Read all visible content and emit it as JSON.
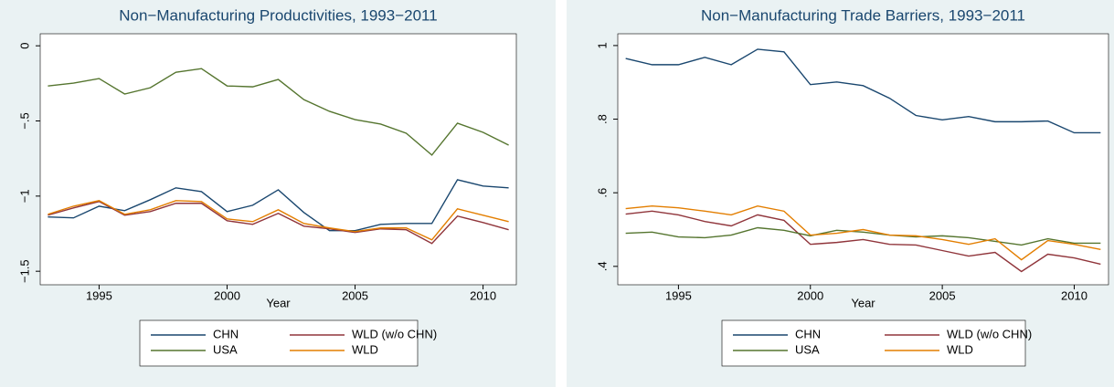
{
  "chart_data": [
    {
      "type": "line",
      "title": "Non−Manufacturing Productivities, 1993−2011",
      "x_label": "Year",
      "x": [
        1993,
        1994,
        1995,
        1996,
        1997,
        1998,
        1999,
        2000,
        2001,
        2002,
        2003,
        2004,
        2005,
        2006,
        2007,
        2008,
        2009,
        2010,
        2011
      ],
      "series": [
        {
          "name": "CHN",
          "color": "#1a476f",
          "values": [
            -1.139,
            -1.145,
            -1.067,
            -1.097,
            -1.024,
            -0.945,
            -0.97,
            -1.103,
            -1.061,
            -0.958,
            -1.109,
            -1.23,
            -1.23,
            -1.188,
            -1.182,
            -1.182,
            -0.891,
            -0.933,
            -0.945
          ]
        },
        {
          "name": "WLD (w/o CHN)",
          "color": "#90353b",
          "values": [
            -1.127,
            -1.079,
            -1.036,
            -1.127,
            -1.103,
            -1.048,
            -1.048,
            -1.164,
            -1.188,
            -1.115,
            -1.2,
            -1.218,
            -1.242,
            -1.218,
            -1.224,
            -1.315,
            -1.133,
            -1.176,
            -1.224
          ]
        },
        {
          "name": "USA",
          "color": "#55752f",
          "values": [
            -0.267,
            -0.248,
            -0.218,
            -0.321,
            -0.279,
            -0.176,
            -0.152,
            -0.267,
            -0.273,
            -0.224,
            -0.358,
            -0.436,
            -0.491,
            -0.521,
            -0.582,
            -0.727,
            -0.515,
            -0.576,
            -0.661
          ]
        },
        {
          "name": "WLD",
          "color": "#e37e00",
          "values": [
            -1.121,
            -1.067,
            -1.03,
            -1.121,
            -1.091,
            -1.03,
            -1.036,
            -1.152,
            -1.17,
            -1.091,
            -1.182,
            -1.212,
            -1.236,
            -1.212,
            -1.212,
            -1.291,
            -1.085,
            -1.127,
            -1.17
          ]
        }
      ],
      "xlim": [
        1992.7,
        2011.3
      ],
      "ylim": [
        -1.59,
        0.08
      ],
      "xticks": [
        1995,
        2000,
        2005,
        2010
      ],
      "yticks": [
        {
          "value": -1.5,
          "label": "−1.5"
        },
        {
          "value": -1,
          "label": "−1"
        },
        {
          "value": -0.5,
          "label": "−.5"
        },
        0
      ],
      "grid": false
    },
    {
      "type": "line",
      "title": "Non−Manufacturing Trade Barriers, 1993−2011",
      "x_label": "Year",
      "x": [
        1993,
        1994,
        1995,
        1996,
        1997,
        1998,
        1999,
        2000,
        2001,
        2002,
        2003,
        2004,
        2005,
        2006,
        2007,
        2008,
        2009,
        2010,
        2011
      ],
      "series": [
        {
          "name": "CHN",
          "color": "#1a476f",
          "values": [
            0.965,
            0.948,
            0.948,
            0.968,
            0.948,
            0.99,
            0.983,
            0.894,
            0.901,
            0.891,
            0.857,
            0.81,
            0.798,
            0.807,
            0.793,
            0.793,
            0.795,
            0.763,
            0.763
          ]
        },
        {
          "name": "WLD (w/o CHN)",
          "color": "#90353b",
          "values": [
            0.542,
            0.55,
            0.54,
            0.522,
            0.51,
            0.54,
            0.525,
            0.46,
            0.465,
            0.473,
            0.46,
            0.458,
            0.443,
            0.428,
            0.438,
            0.386,
            0.433,
            0.423,
            0.406
          ]
        },
        {
          "name": "USA",
          "color": "#55752f",
          "values": [
            0.49,
            0.493,
            0.48,
            0.478,
            0.485,
            0.505,
            0.498,
            0.483,
            0.498,
            0.493,
            0.485,
            0.48,
            0.483,
            0.478,
            0.468,
            0.458,
            0.475,
            0.463,
            0.463
          ]
        },
        {
          "name": "WLD",
          "color": "#e37e00",
          "values": [
            0.557,
            0.564,
            0.559,
            0.55,
            0.54,
            0.564,
            0.55,
            0.485,
            0.49,
            0.5,
            0.485,
            0.483,
            0.473,
            0.46,
            0.475,
            0.418,
            0.47,
            0.46,
            0.446
          ]
        }
      ],
      "xlim": [
        1992.7,
        2011.3
      ],
      "ylim": [
        0.35,
        1.032
      ],
      "xticks": [
        1995,
        2000,
        2005,
        2010
      ],
      "yticks": [
        {
          "value": 0.4,
          "label": ".4"
        },
        {
          "value": 0.6,
          "label": ".6"
        },
        {
          "value": 0.8,
          "label": ".8"
        },
        1
      ],
      "grid": false
    }
  ]
}
